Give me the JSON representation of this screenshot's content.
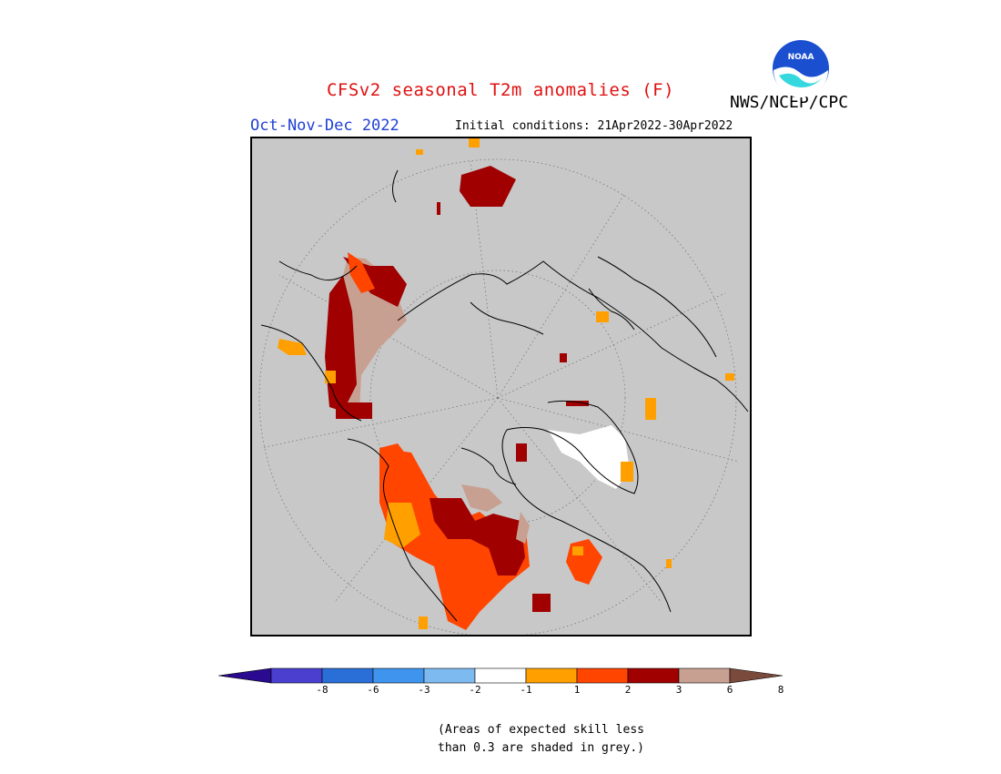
{
  "header": {
    "title": "CFSv2 seasonal T2m anomalies (F)",
    "title_color": "#e01010",
    "agency": "NWS/NCEP/CPC",
    "season": "Oct-Nov-Dec 2022",
    "season_color": "#1f3fd6",
    "initial_conditions": "Initial conditions: 21Apr2022-30Apr2022"
  },
  "logo": {
    "icon": "noaa-logo-icon",
    "text": "NOAA"
  },
  "map": {
    "background_color": "#c8c8c8",
    "projection": "north polar stereographic"
  },
  "colorbar": {
    "colors": [
      "#2a0a8e",
      "#4a3fcf",
      "#2a6fd8",
      "#3f95ee",
      "#7dbaf0",
      "#ffffff",
      "#ffa000",
      "#ff4500",
      "#a00000",
      "#c8a092",
      "#7a4a3c"
    ],
    "tick_labels": [
      "-8",
      "-6",
      "-3",
      "-2",
      "-1",
      "1",
      "2",
      "3",
      "6",
      "8"
    ]
  },
  "note": {
    "line1": "(Areas of expected skill less",
    "line2": "than 0.3 are shaded in grey.)"
  }
}
